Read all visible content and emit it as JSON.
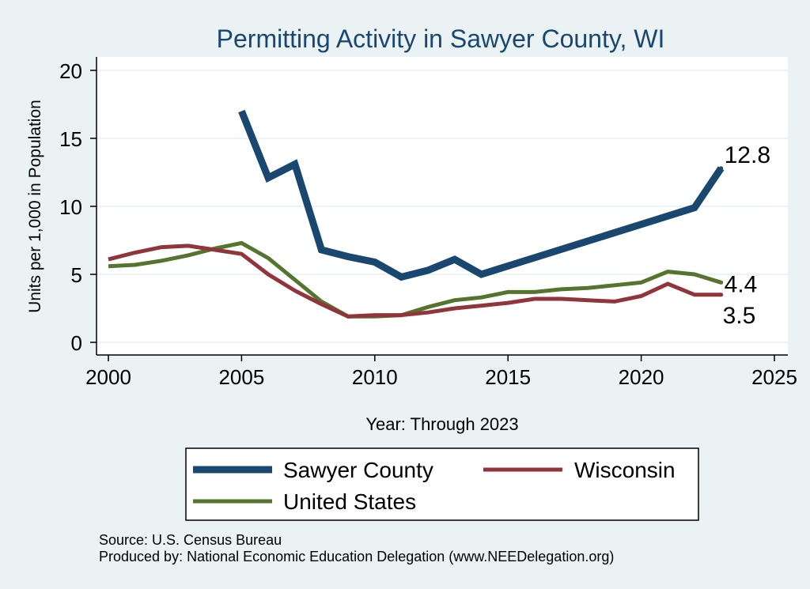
{
  "chart_data": {
    "type": "line",
    "title": "Permitting Activity in Sawyer County, WI",
    "xlabel": "Year: Through 2023",
    "ylabel": "Units per 1,000 in Population",
    "xlim": [
      2000,
      2025
    ],
    "ylim": [
      0,
      20
    ],
    "x_ticks": [
      "2000",
      "2005",
      "2010",
      "2015",
      "2020",
      "2025"
    ],
    "y_ticks": [
      "0",
      "5",
      "10",
      "15",
      "20"
    ],
    "grid": "horizontal",
    "legend_position": "bottom",
    "series": [
      {
        "name": "Sawyer County",
        "color": "#1a476f",
        "x": [
          2005,
          2006,
          2007,
          2008,
          2009,
          2010,
          2011,
          2012,
          2013,
          2014,
          2022,
          2023
        ],
        "values": [
          17.0,
          12.1,
          13.1,
          6.8,
          6.3,
          5.9,
          4.8,
          5.3,
          6.1,
          5.0,
          9.9,
          12.8
        ],
        "end_label": "12.8"
      },
      {
        "name": "Wisconsin",
        "color": "#90353b",
        "x": [
          2000,
          2001,
          2002,
          2003,
          2004,
          2005,
          2006,
          2007,
          2008,
          2009,
          2010,
          2011,
          2012,
          2013,
          2014,
          2015,
          2016,
          2017,
          2018,
          2019,
          2020,
          2021,
          2022,
          2023
        ],
        "values": [
          6.1,
          6.6,
          7.0,
          7.1,
          6.8,
          6.5,
          5.0,
          3.8,
          2.8,
          1.9,
          2.0,
          2.0,
          2.2,
          2.5,
          2.7,
          2.9,
          3.2,
          3.2,
          3.1,
          3.0,
          3.4,
          4.3,
          3.5,
          3.5
        ],
        "end_label": "3.5"
      },
      {
        "name": "United States",
        "color": "#55752f",
        "x": [
          2000,
          2001,
          2002,
          2003,
          2004,
          2005,
          2006,
          2007,
          2008,
          2009,
          2010,
          2011,
          2012,
          2013,
          2014,
          2015,
          2016,
          2017,
          2018,
          2019,
          2020,
          2021,
          2022,
          2023
        ],
        "values": [
          5.6,
          5.7,
          6.0,
          6.4,
          6.9,
          7.3,
          6.2,
          4.6,
          3.0,
          1.9,
          1.9,
          2.0,
          2.6,
          3.1,
          3.3,
          3.7,
          3.7,
          3.9,
          4.0,
          4.2,
          4.4,
          5.2,
          5.0,
          4.4
        ],
        "end_label": "4.4"
      }
    ],
    "legend_entries": [
      "Sawyer County",
      "Wisconsin",
      "United States"
    ],
    "notes": {
      "source": "Source: U.S. Census Bureau",
      "produced_by": "Produced by: National Economic Education Delegation (www.NEEDelegation.org)"
    }
  }
}
